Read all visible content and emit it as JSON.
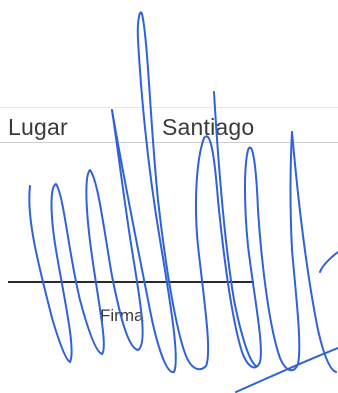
{
  "form": {
    "place_label": "Lugar",
    "place_value": "Santiago",
    "signature_caption": "Firma"
  },
  "colors": {
    "ink": "#2f62d8",
    "text": "#3a3a3a",
    "rule": "#2a2a2a"
  },
  "icons": {
    "signature": "handwritten-signature-icon"
  }
}
